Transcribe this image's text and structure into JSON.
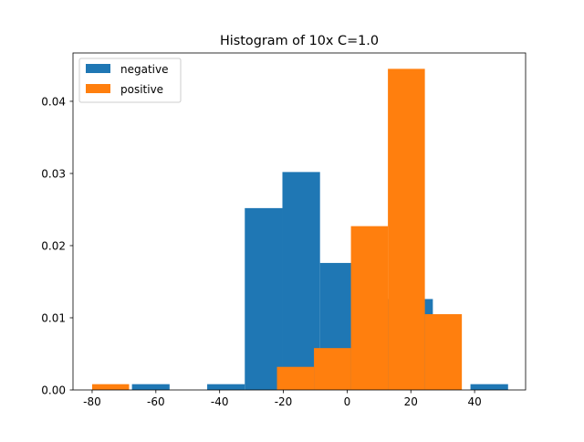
{
  "chart_data": {
    "type": "bar",
    "title": "Histogram of 10x C=1.0",
    "xlabel": "",
    "ylabel": "",
    "xlim": [
      -86,
      56
    ],
    "ylim": [
      0,
      0.0467
    ],
    "xticks": [
      -80,
      -60,
      -40,
      -20,
      0,
      20,
      40
    ],
    "yticks": [
      0.0,
      0.01,
      0.02,
      0.03,
      0.04
    ],
    "ytick_labels": [
      "0.00",
      "0.01",
      "0.02",
      "0.03",
      "0.04"
    ],
    "legend_position": "upper-left",
    "grid": false,
    "series": [
      {
        "name": "negative",
        "color": "#1f77b4",
        "bins": [
          {
            "x0": -67.5,
            "x1": -55.7,
            "value": 0.0008
          },
          {
            "x0": -55.7,
            "x1": -43.9,
            "value": 0.0
          },
          {
            "x0": -43.9,
            "x1": -32.1,
            "value": 0.0008
          },
          {
            "x0": -32.1,
            "x1": -20.3,
            "value": 0.0252
          },
          {
            "x0": -20.3,
            "x1": -8.5,
            "value": 0.0302
          },
          {
            "x0": -8.5,
            "x1": 3.3,
            "value": 0.0176
          },
          {
            "x0": 3.3,
            "x1": 15.1,
            "value": 0.0126
          },
          {
            "x0": 15.1,
            "x1": 26.9,
            "value": 0.0126
          },
          {
            "x0": 26.9,
            "x1": 38.7,
            "value": 0.0
          },
          {
            "x0": 38.7,
            "x1": 50.5,
            "value": 0.0008
          }
        ]
      },
      {
        "name": "positive",
        "color": "#ff7f0e",
        "bins": [
          {
            "x0": -80.0,
            "x1": -68.4,
            "value": 0.0008
          },
          {
            "x0": -68.4,
            "x1": -56.8,
            "value": 0.0
          },
          {
            "x0": -56.8,
            "x1": -45.2,
            "value": 0.0
          },
          {
            "x0": -45.2,
            "x1": -33.6,
            "value": 0.0
          },
          {
            "x0": -33.6,
            "x1": -22.0,
            "value": 0.0
          },
          {
            "x0": -22.0,
            "x1": -10.4,
            "value": 0.0032
          },
          {
            "x0": -10.4,
            "x1": 1.2,
            "value": 0.0058
          },
          {
            "x0": 1.2,
            "x1": 12.8,
            "value": 0.0227
          },
          {
            "x0": 12.8,
            "x1": 24.4,
            "value": 0.0445
          },
          {
            "x0": 24.4,
            "x1": 36.0,
            "value": 0.0105
          }
        ]
      }
    ]
  }
}
